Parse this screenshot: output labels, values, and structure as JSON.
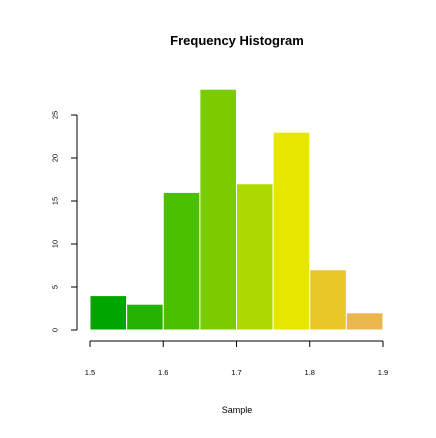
{
  "chart_data": {
    "type": "bar",
    "title": "Frequency Histogram",
    "xlabel": "Sample",
    "ylabel": "",
    "bins": [
      {
        "start": 1.5,
        "end": 1.55,
        "value": 4,
        "color": "#00A600"
      },
      {
        "start": 1.55,
        "end": 1.6,
        "value": 3,
        "color": "#24B300"
      },
      {
        "start": 1.6,
        "end": 1.65,
        "value": 16,
        "color": "#4CC000"
      },
      {
        "start": 1.65,
        "end": 1.7,
        "value": 28,
        "color": "#7ACC00"
      },
      {
        "start": 1.7,
        "end": 1.75,
        "value": 17,
        "color": "#ADD900"
      },
      {
        "start": 1.75,
        "end": 1.8,
        "value": 23,
        "color": "#E6E600"
      },
      {
        "start": 1.8,
        "end": 1.85,
        "value": 7,
        "color": "#E8C727"
      },
      {
        "start": 1.85,
        "end": 1.9,
        "value": 2,
        "color": "#EAB64E"
      }
    ],
    "xlim": [
      1.5,
      1.9
    ],
    "ylim": [
      0,
      28
    ],
    "x_ticks": [
      "1.5",
      "1.6",
      "1.7",
      "1.8",
      "1.9"
    ],
    "y_ticks": [
      "0",
      "5",
      "10",
      "15",
      "20",
      "25"
    ],
    "grid": false,
    "legend": "none"
  }
}
